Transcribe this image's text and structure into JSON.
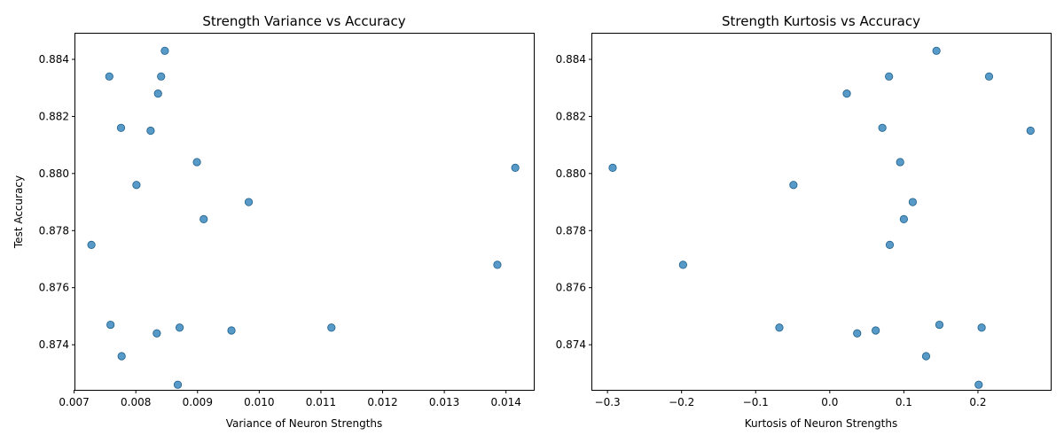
{
  "colors": {
    "point": "#1f77b4",
    "point_opacity": 0.75,
    "frame": "#000000",
    "background": "#ffffff"
  },
  "chart_data": [
    {
      "type": "scatter",
      "title": "Strength Variance vs Accuracy",
      "xlabel": "Variance of Neuron Strengths",
      "ylabel": "Test Accuracy",
      "xlim": [
        0.00702,
        0.01445
      ],
      "ylim": [
        0.87242,
        0.8849
      ],
      "xticks": [
        "0.007",
        "0.008",
        "0.009",
        "0.010",
        "0.011",
        "0.012",
        "0.013",
        "0.014"
      ],
      "xtick_values": [
        0.007,
        0.008,
        0.009,
        0.01,
        0.011,
        0.012,
        0.013,
        0.014
      ],
      "yticks": [
        "0.874",
        "0.876",
        "0.878",
        "0.880",
        "0.882",
        "0.884"
      ],
      "ytick_values": [
        0.874,
        0.876,
        0.878,
        0.88,
        0.882,
        0.884
      ],
      "grid": false,
      "points": [
        {
          "x": 0.00847,
          "y": 0.8843
        },
        {
          "x": 0.00757,
          "y": 0.8834
        },
        {
          "x": 0.00841,
          "y": 0.8834
        },
        {
          "x": 0.00836,
          "y": 0.8828
        },
        {
          "x": 0.00776,
          "y": 0.8816
        },
        {
          "x": 0.00824,
          "y": 0.8815
        },
        {
          "x": 0.00899,
          "y": 0.8804
        },
        {
          "x": 0.01415,
          "y": 0.8802
        },
        {
          "x": 0.00801,
          "y": 0.8796
        },
        {
          "x": 0.00983,
          "y": 0.879
        },
        {
          "x": 0.0091,
          "y": 0.8784
        },
        {
          "x": 0.00728,
          "y": 0.8775
        },
        {
          "x": 0.01386,
          "y": 0.8768
        },
        {
          "x": 0.00759,
          "y": 0.8747
        },
        {
          "x": 0.00871,
          "y": 0.8746
        },
        {
          "x": 0.01117,
          "y": 0.8746
        },
        {
          "x": 0.00955,
          "y": 0.8745
        },
        {
          "x": 0.00834,
          "y": 0.8744
        },
        {
          "x": 0.00777,
          "y": 0.8736
        },
        {
          "x": 0.00868,
          "y": 0.8726
        }
      ]
    },
    {
      "type": "scatter",
      "title": "Strength Kurtosis vs Accuracy",
      "xlabel": "Kurtosis of Neuron Strengths",
      "ylabel": "",
      "xlim": [
        -0.3205,
        0.2982
      ],
      "ylim": [
        0.87242,
        0.8849
      ],
      "xticks": [
        "−0.3",
        "−0.2",
        "−0.1",
        "0.0",
        "0.1",
        "0.2"
      ],
      "xtick_values": [
        -0.3,
        -0.2,
        -0.1,
        0.0,
        0.1,
        0.2
      ],
      "yticks": [
        "0.874",
        "0.876",
        "0.878",
        "0.880",
        "0.882",
        "0.884"
      ],
      "ytick_values": [
        0.874,
        0.876,
        0.878,
        0.88,
        0.882,
        0.884
      ],
      "grid": false,
      "points": [
        {
          "x": 0.144,
          "y": 0.8843
        },
        {
          "x": 0.08,
          "y": 0.8834
        },
        {
          "x": 0.215,
          "y": 0.8834
        },
        {
          "x": 0.023,
          "y": 0.8828
        },
        {
          "x": 0.071,
          "y": 0.8816
        },
        {
          "x": 0.271,
          "y": 0.8815
        },
        {
          "x": 0.095,
          "y": 0.8804
        },
        {
          "x": -0.293,
          "y": 0.8802
        },
        {
          "x": -0.049,
          "y": 0.8796
        },
        {
          "x": 0.112,
          "y": 0.879
        },
        {
          "x": 0.1,
          "y": 0.8784
        },
        {
          "x": 0.081,
          "y": 0.8775
        },
        {
          "x": -0.198,
          "y": 0.8768
        },
        {
          "x": 0.148,
          "y": 0.8747
        },
        {
          "x": -0.068,
          "y": 0.8746
        },
        {
          "x": 0.205,
          "y": 0.8746
        },
        {
          "x": 0.062,
          "y": 0.8745
        },
        {
          "x": 0.037,
          "y": 0.8744
        },
        {
          "x": 0.13,
          "y": 0.8736
        },
        {
          "x": 0.201,
          "y": 0.8726
        }
      ]
    }
  ]
}
